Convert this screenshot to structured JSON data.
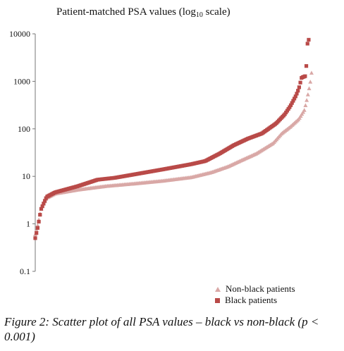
{
  "chart_data": {
    "type": "scatter",
    "title": "Patient-matched PSA values (log",
    "title_sub": "10",
    "title_suffix": " scale)",
    "xlabel": "",
    "ylabel": "",
    "yscale": "log",
    "ylim": [
      0.1,
      10000
    ],
    "yticks": [
      "0.1",
      "1",
      "10",
      "100",
      "1000",
      "10000"
    ],
    "ytick_values": [
      0.1,
      1,
      10,
      100,
      1000,
      10000
    ],
    "grid": false,
    "legend_position": "bottom-right",
    "series": [
      {
        "name": "Non-black patients",
        "marker": "triangle",
        "color": "#d9a8a6",
        "rank_quantile_values": [
          [
            0,
            0.6
          ],
          [
            0.01,
            1.0
          ],
          [
            0.02,
            2.0
          ],
          [
            0.04,
            3.5
          ],
          [
            0.07,
            4.3
          ],
          [
            0.15,
            5.2
          ],
          [
            0.25,
            6.2
          ],
          [
            0.35,
            7.0
          ],
          [
            0.45,
            8.0
          ],
          [
            0.55,
            9.5
          ],
          [
            0.62,
            12
          ],
          [
            0.68,
            16
          ],
          [
            0.73,
            22
          ],
          [
            0.78,
            30
          ],
          [
            0.84,
            50
          ],
          [
            0.87,
            80
          ],
          [
            0.9,
            110
          ],
          [
            0.93,
            160
          ],
          [
            0.95,
            250
          ],
          [
            0.96,
            450
          ],
          [
            0.97,
            900
          ],
          [
            0.975,
            1500
          ]
        ]
      },
      {
        "name": "Black patients",
        "marker": "square",
        "color": "#b94a48",
        "rank_quantile_values": [
          [
            0,
            0.5
          ],
          [
            0.01,
            0.9
          ],
          [
            0.02,
            2.0
          ],
          [
            0.04,
            3.7
          ],
          [
            0.07,
            4.6
          ],
          [
            0.15,
            6.2
          ],
          [
            0.22,
            8.5
          ],
          [
            0.28,
            9.3
          ],
          [
            0.35,
            11
          ],
          [
            0.45,
            14
          ],
          [
            0.55,
            18
          ],
          [
            0.6,
            21
          ],
          [
            0.65,
            30
          ],
          [
            0.7,
            45
          ],
          [
            0.75,
            62
          ],
          [
            0.8,
            80
          ],
          [
            0.85,
            130
          ],
          [
            0.88,
            200
          ],
          [
            0.9,
            300
          ],
          [
            0.92,
            500
          ],
          [
            0.93,
            700
          ],
          [
            0.94,
            1200
          ],
          [
            0.955,
            1300
          ],
          [
            0.96,
            6000
          ],
          [
            0.965,
            7500
          ]
        ]
      }
    ]
  },
  "caption": "Figure 2: Scatter plot of all PSA values – black vs non-black (p < 0.001)"
}
